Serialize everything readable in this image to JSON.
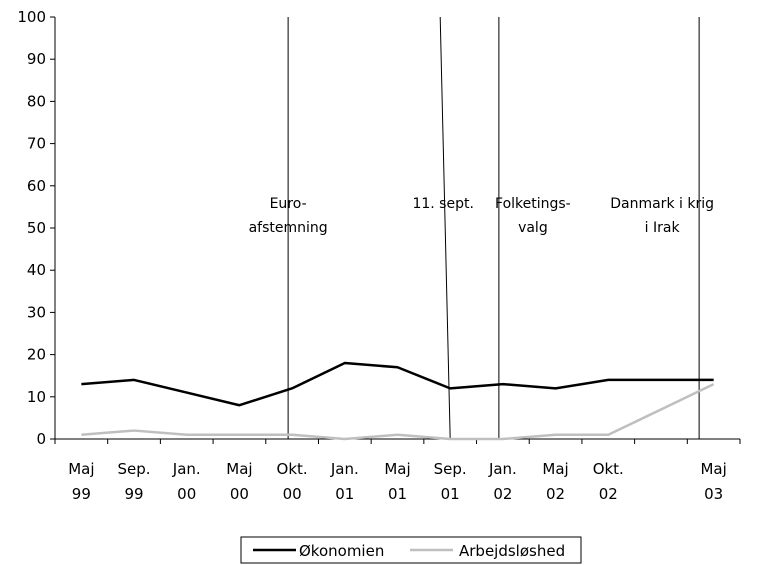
{
  "chart_data": {
    "type": "line",
    "title": "",
    "xlabel": "",
    "ylabel": "",
    "ylim": [
      0,
      100
    ],
    "yticks": [
      0,
      10,
      20,
      30,
      40,
      50,
      60,
      70,
      80,
      90,
      100
    ],
    "grid": false,
    "legend_position": "bottom-center",
    "x_axis_labels": [
      [
        "Maj",
        "99"
      ],
      [
        "Sep.",
        "99"
      ],
      [
        "Jan.",
        "00"
      ],
      [
        "Maj",
        "00"
      ],
      [
        "Okt.",
        "00"
      ],
      [
        "Jan.",
        "01"
      ],
      [
        "Maj",
        "01"
      ],
      [
        "Sep.",
        "01"
      ],
      [
        "Jan.",
        "02"
      ],
      [
        "Maj",
        "02"
      ],
      [
        "Okt.",
        "02"
      ],
      [
        "",
        ""
      ],
      [
        "Maj",
        "03"
      ]
    ],
    "series": [
      {
        "name": "Økonomien",
        "color": "#000000",
        "values": [
          13,
          14,
          11,
          8,
          12,
          18,
          17,
          12,
          13,
          12,
          14,
          14,
          14
        ]
      },
      {
        "name": "Arbejdsløshed",
        "color": "#bfbfbf",
        "values": [
          1,
          2,
          1,
          1,
          1,
          0,
          1,
          0,
          0,
          1,
          1,
          7,
          13
        ]
      }
    ],
    "events": [
      {
        "position": 4.0,
        "lines": [
          "Euro-",
          "afstemning"
        ]
      },
      {
        "position": 7.0,
        "lines": [
          "11. sept."
        ]
      },
      {
        "position": 8.0,
        "lines": [
          "Folketings-",
          "valg"
        ]
      },
      {
        "position": 11.8,
        "lines": [
          "Danmark i krig",
          "i Irak"
        ]
      }
    ]
  }
}
